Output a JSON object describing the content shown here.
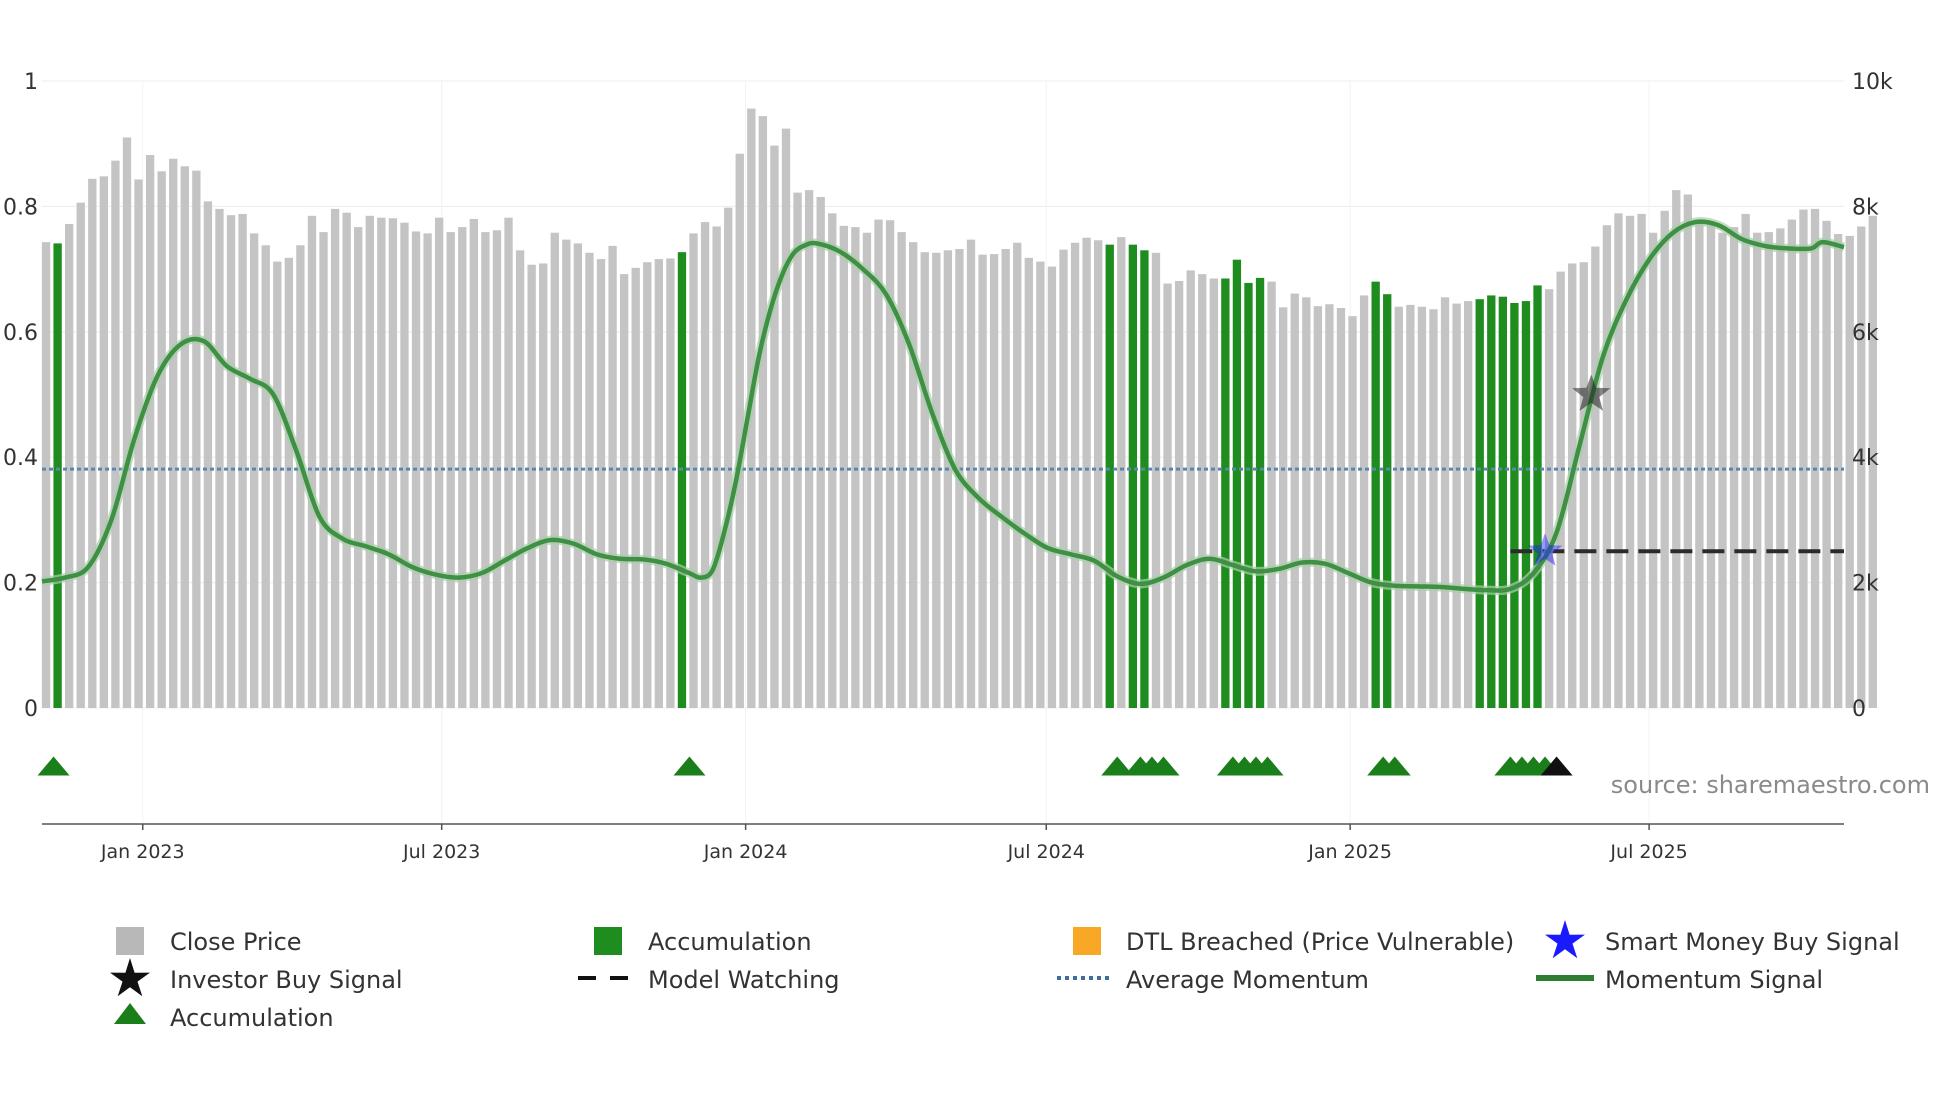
{
  "chart_data": {
    "type": "bar",
    "title": "",
    "source_label": "source: sharemaestro.com",
    "left_axis": {
      "min": 0,
      "max": 1,
      "ticks": [
        0,
        0.2,
        0.4,
        0.6,
        0.8,
        1
      ],
      "tick_labels": [
        "0",
        "0.2",
        "0.4",
        "0.6",
        "0.8",
        "1"
      ]
    },
    "right_axis": {
      "min": 0,
      "max": 10000,
      "ticks": [
        0,
        2000,
        4000,
        6000,
        8000,
        10000
      ],
      "tick_labels": [
        "0",
        "2k",
        "4k",
        "6k",
        "8k",
        "10k"
      ]
    },
    "x_axis": {
      "start": "2022-11-01",
      "end": "2025-10-27",
      "ticks": [
        {
          "date": "2023-01-01",
          "label": "Jan 2023"
        },
        {
          "date": "2023-07-01",
          "label": "Jul 2023"
        },
        {
          "date": "2024-01-01",
          "label": "Jan 2024"
        },
        {
          "date": "2024-07-01",
          "label": "Jul 2024"
        },
        {
          "date": "2025-01-01",
          "label": "Jan 2025"
        },
        {
          "date": "2025-07-01",
          "label": "Jul 2025"
        }
      ]
    },
    "close_price": {
      "name": "Close Price",
      "start_date": "2022-11-01",
      "interval_days": 7,
      "values": [
        7430,
        7410,
        7720,
        8060,
        8440,
        8480,
        8730,
        9100,
        8430,
        8820,
        8560,
        8760,
        8640,
        8570,
        8080,
        7960,
        7860,
        7880,
        7570,
        7380,
        7120,
        7180,
        7380,
        7850,
        7590,
        7960,
        7900,
        7670,
        7850,
        7820,
        7810,
        7740,
        7600,
        7570,
        7820,
        7590,
        7670,
        7800,
        7590,
        7620,
        7820,
        7300,
        7070,
        7090,
        7580,
        7470,
        7410,
        7260,
        7160,
        7370,
        6920,
        7020,
        7110,
        7160,
        7170,
        7270,
        7570,
        7750,
        7680,
        7980,
        8840,
        9560,
        9440,
        8970,
        9240,
        8220,
        8260,
        8150,
        7890,
        7690,
        7670,
        7580,
        7790,
        7780,
        7590,
        7430,
        7270,
        7260,
        7300,
        7320,
        7470,
        7230,
        7240,
        7320,
        7420,
        7180,
        7120,
        7040,
        7310,
        7420,
        7500,
        7460,
        7390,
        7510,
        7390,
        7300,
        7260,
        6770,
        6810,
        6980,
        6920,
        6850,
        6850,
        7150,
        6780,
        6860,
        6800,
        6390,
        6610,
        6550,
        6410,
        6440,
        6380,
        6250,
        6580,
        6800,
        6600,
        6400,
        6430,
        6400,
        6360,
        6550,
        6450,
        6490,
        6520,
        6580,
        6560,
        6460,
        6490,
        6740,
        6680,
        6960,
        7090,
        7110,
        7360,
        7700,
        7890,
        7850,
        7880,
        7580,
        7930,
        8260,
        8190,
        7740,
        7720,
        7580,
        7670,
        7880,
        7580,
        7590,
        7650,
        7790,
        7950,
        7960,
        7770,
        7560,
        7530,
        7680,
        7850
      ]
    },
    "accumulation_bars": {
      "name": "Accumulation",
      "color": "#1e8c1e",
      "indices": [
        1,
        55,
        92,
        94,
        95,
        102,
        103,
        104,
        105,
        115,
        116,
        124,
        125,
        126,
        127,
        128,
        129
      ]
    },
    "momentum_signal": {
      "name": "Momentum Signal",
      "color": "#2e7d32",
      "points": [
        [
          "2022-11-01",
          0.202
        ],
        [
          "2022-11-15",
          0.208
        ],
        [
          "2022-11-29",
          0.225
        ],
        [
          "2022-12-13",
          0.3
        ],
        [
          "2022-12-27",
          0.43
        ],
        [
          "2023-01-10",
          0.53
        ],
        [
          "2023-01-24",
          0.58
        ],
        [
          "2023-02-07",
          0.585
        ],
        [
          "2023-02-21",
          0.545
        ],
        [
          "2023-03-07",
          0.525
        ],
        [
          "2023-03-21",
          0.5
        ],
        [
          "2023-04-04",
          0.41
        ],
        [
          "2023-04-18",
          0.305
        ],
        [
          "2023-05-02",
          0.27
        ],
        [
          "2023-05-16",
          0.258
        ],
        [
          "2023-05-30",
          0.245
        ],
        [
          "2023-06-13",
          0.225
        ],
        [
          "2023-06-27",
          0.213
        ],
        [
          "2023-07-11",
          0.208
        ],
        [
          "2023-07-25",
          0.215
        ],
        [
          "2023-08-08",
          0.235
        ],
        [
          "2023-08-22",
          0.255
        ],
        [
          "2023-09-05",
          0.268
        ],
        [
          "2023-09-19",
          0.262
        ],
        [
          "2023-10-03",
          0.245
        ],
        [
          "2023-10-17",
          0.238
        ],
        [
          "2023-10-31",
          0.237
        ],
        [
          "2023-11-14",
          0.23
        ],
        [
          "2023-11-28",
          0.215
        ],
        [
          "2023-12-05",
          0.208
        ],
        [
          "2023-12-12",
          0.22
        ],
        [
          "2023-12-19",
          0.28
        ],
        [
          "2023-12-26",
          0.36
        ],
        [
          "2024-01-02",
          0.46
        ],
        [
          "2024-01-09",
          0.56
        ],
        [
          "2024-01-16",
          0.635
        ],
        [
          "2024-01-23",
          0.69
        ],
        [
          "2024-01-30",
          0.725
        ],
        [
          "2024-02-06",
          0.738
        ],
        [
          "2024-02-13",
          0.741
        ],
        [
          "2024-02-27",
          0.728
        ],
        [
          "2024-03-12",
          0.7
        ],
        [
          "2024-03-26",
          0.66
        ],
        [
          "2024-04-09",
          0.58
        ],
        [
          "2024-04-23",
          0.47
        ],
        [
          "2024-05-07",
          0.38
        ],
        [
          "2024-05-21",
          0.335
        ],
        [
          "2024-06-04",
          0.305
        ],
        [
          "2024-06-18",
          0.278
        ],
        [
          "2024-07-02",
          0.255
        ],
        [
          "2024-07-16",
          0.245
        ],
        [
          "2024-07-30",
          0.235
        ],
        [
          "2024-08-13",
          0.21
        ],
        [
          "2024-08-27",
          0.198
        ],
        [
          "2024-09-10",
          0.208
        ],
        [
          "2024-09-24",
          0.228
        ],
        [
          "2024-10-08",
          0.238
        ],
        [
          "2024-10-22",
          0.228
        ],
        [
          "2024-11-05",
          0.218
        ],
        [
          "2024-11-19",
          0.222
        ],
        [
          "2024-12-03",
          0.232
        ],
        [
          "2024-12-17",
          0.23
        ],
        [
          "2024-12-31",
          0.215
        ],
        [
          "2025-01-14",
          0.2
        ],
        [
          "2025-01-28",
          0.195
        ],
        [
          "2025-02-11",
          0.194
        ],
        [
          "2025-02-25",
          0.193
        ],
        [
          "2025-03-11",
          0.19
        ],
        [
          "2025-03-25",
          0.188
        ],
        [
          "2025-04-08",
          0.19
        ],
        [
          "2025-04-22",
          0.215
        ],
        [
          "2025-05-06",
          0.28
        ],
        [
          "2025-05-20",
          0.42
        ],
        [
          "2025-06-03",
          0.56
        ],
        [
          "2025-06-17",
          0.65
        ],
        [
          "2025-07-01",
          0.715
        ],
        [
          "2025-07-15",
          0.757
        ],
        [
          "2025-07-29",
          0.775
        ],
        [
          "2025-08-12",
          0.77
        ],
        [
          "2025-08-26",
          0.748
        ],
        [
          "2025-09-09",
          0.737
        ],
        [
          "2025-09-23",
          0.733
        ],
        [
          "2025-10-07",
          0.733
        ],
        [
          "2025-10-14",
          0.743
        ],
        [
          "2025-10-27",
          0.735
        ]
      ]
    },
    "average_momentum": {
      "name": "Average Momentum",
      "value": 0.381,
      "color": "#4a7ba5"
    },
    "model_watching": {
      "name": "Model Watching",
      "value": 0.25,
      "from": "2025-04-08",
      "to": "2025-10-27"
    },
    "smart_money_buy_signal": {
      "name": "Smart Money Buy Signal",
      "date": "2025-04-29",
      "value": 0.25,
      "color": "#1a1aff"
    },
    "investor_buy_signal": {
      "name": "Investor Buy Signal",
      "date": "2025-05-27",
      "value": 0.5
    },
    "accumulation_markers": {
      "name": "Accumulation",
      "dates": [
        "2022-11-08",
        "2023-11-28",
        "2024-08-13",
        "2024-08-27",
        "2024-09-03",
        "2024-09-10",
        "2024-10-22",
        "2024-10-29",
        "2024-11-05",
        "2024-11-12",
        "2025-01-21",
        "2025-01-28",
        "2025-04-08",
        "2025-04-15",
        "2025-04-22",
        "2025-04-29"
      ],
      "black_marker_date": "2025-05-06"
    },
    "legend": {
      "close_price": "Close Price",
      "accumulation_bar": "Accumulation",
      "dtl_breached": "DTL Breached (Price Vulnerable)",
      "smart_money": "Smart Money Buy Signal",
      "investor_buy": "Investor Buy Signal",
      "model_watching": "Model Watching",
      "average_momentum": "Average Momentum",
      "momentum_signal": "Momentum Signal",
      "accumulation_marker": "Accumulation"
    },
    "colors": {
      "close_bar": "#c4c4c4",
      "accumulation_bar": "#1e8c1e",
      "dtl": "#f9a825",
      "triangle": "#1a7f1a",
      "grid": "#ececec"
    }
  }
}
